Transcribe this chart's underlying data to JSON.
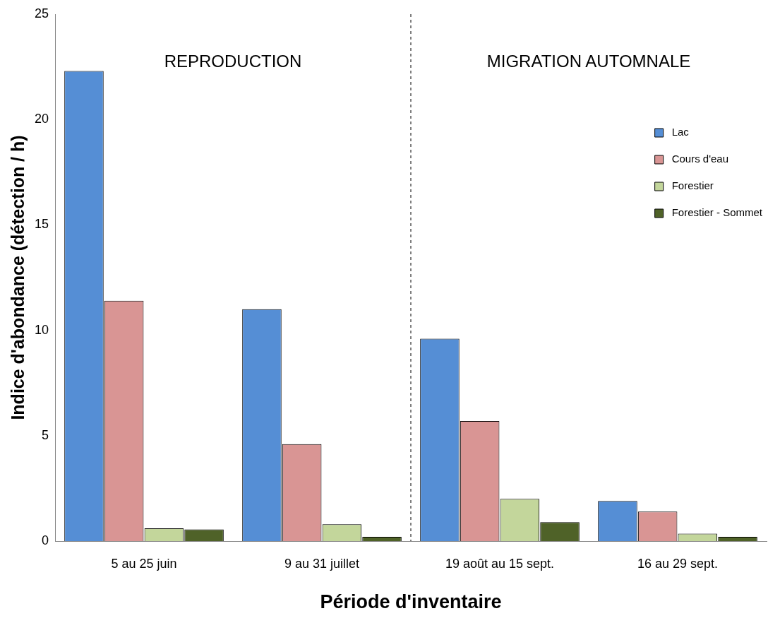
{
  "chart_data": {
    "type": "bar",
    "xlabel": "Période d'inventaire",
    "ylabel": "Indice d'abondance (détection / h)",
    "categories": [
      "5 au 25 juin",
      "9 au 31 juillet",
      "19 août au 15 sept.",
      "16 au 29 sept."
    ],
    "series": [
      {
        "name": "Lac",
        "color": "#558ed5",
        "values": [
          22.3,
          11.0,
          9.6,
          1.9
        ]
      },
      {
        "name": "Cours d'eau",
        "color": "#d99594",
        "values": [
          11.4,
          4.6,
          5.7,
          1.4
        ]
      },
      {
        "name": "Forestier",
        "color": "#c3d69b",
        "values": [
          0.6,
          0.8,
          2.0,
          0.35
        ]
      },
      {
        "name": "Forestier - Sommet",
        "color": "#4f6228",
        "values": [
          0.55,
          0.2,
          0.9,
          0.2
        ]
      }
    ],
    "ylim": [
      0,
      25
    ],
    "yticks": [
      0,
      5,
      10,
      15,
      20,
      25
    ],
    "grid": false,
    "legend": "top right",
    "annotations": [
      "REPRODUCTION",
      "MIGRATION AUTOMNALE"
    ]
  }
}
